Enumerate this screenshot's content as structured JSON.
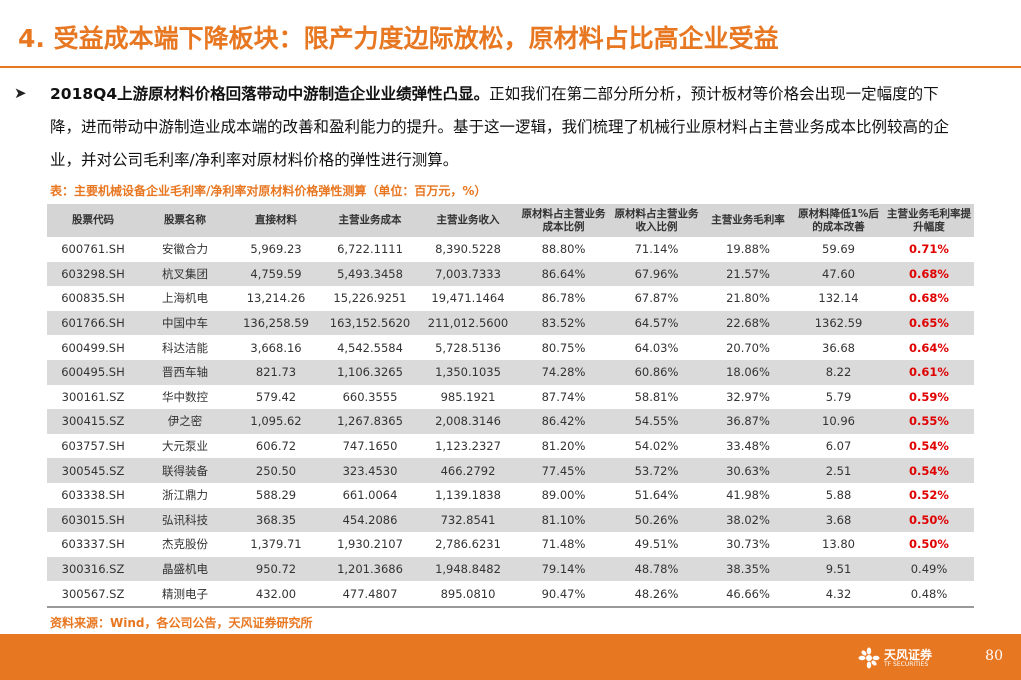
{
  "header": {
    "title": "4. 受益成本端下降板块：限产力度边际放松，原材料占比高企业受益"
  },
  "body": {
    "bullet_icon": "arrow-bullet-icon",
    "bold_text": "2018Q4上游原材料价格回落带动中游制造企业业绩弹性凸显。",
    "text": "正如我们在第二部分所分析，预计板材等价格会出现一定幅度的下降，进而带动中游制造业成本端的改善和盈利能力的提升。基于这一逻辑，我们梳理了机械行业原材料占主营业务成本比例较高的企业，并对公司毛利率/净利率对原材料价格的弹性进行测算。"
  },
  "table": {
    "caption": "表：主要机械设备企业毛利率/净利率对原材料价格弹性测算（单位：百万元，%）",
    "headers": [
      "股票代码",
      "股票名称",
      "直接材料",
      "主营业务成本",
      "主营业务收入",
      "原材料占主营业务成本比例",
      "原材料占主营业务收入比例",
      "主营业务毛利率",
      "原材料降低1%后的成本改善",
      "主营业务毛利率提升幅度"
    ],
    "rows": [
      [
        "600761.SH",
        "安徽合力",
        "5,969.23",
        "6,722.1111",
        "8,390.5228",
        "88.80%",
        "71.14%",
        "19.88%",
        "59.69",
        "0.71%"
      ],
      [
        "603298.SH",
        "杭叉集团",
        "4,759.59",
        "5,493.3458",
        "7,003.7333",
        "86.64%",
        "67.96%",
        "21.57%",
        "47.60",
        "0.68%"
      ],
      [
        "600835.SH",
        "上海机电",
        "13,214.26",
        "15,226.9251",
        "19,471.1464",
        "86.78%",
        "67.87%",
        "21.80%",
        "132.14",
        "0.68%"
      ],
      [
        "601766.SH",
        "中国中车",
        "136,258.59",
        "163,152.5620",
        "211,012.5600",
        "83.52%",
        "64.57%",
        "22.68%",
        "1362.59",
        "0.65%"
      ],
      [
        "600499.SH",
        "科达洁能",
        "3,668.16",
        "4,542.5584",
        "5,728.5136",
        "80.75%",
        "64.03%",
        "20.70%",
        "36.68",
        "0.64%"
      ],
      [
        "600495.SH",
        "晋西车轴",
        "821.73",
        "1,106.3265",
        "1,350.1035",
        "74.28%",
        "60.86%",
        "18.06%",
        "8.22",
        "0.61%"
      ],
      [
        "300161.SZ",
        "华中数控",
        "579.42",
        "660.3555",
        "985.1921",
        "87.74%",
        "58.81%",
        "32.97%",
        "5.79",
        "0.59%"
      ],
      [
        "300415.SZ",
        "伊之密",
        "1,095.62",
        "1,267.8365",
        "2,008.3146",
        "86.42%",
        "54.55%",
        "36.87%",
        "10.96",
        "0.55%"
      ],
      [
        "603757.SH",
        "大元泵业",
        "606.72",
        "747.1650",
        "1,123.2327",
        "81.20%",
        "54.02%",
        "33.48%",
        "6.07",
        "0.54%"
      ],
      [
        "300545.SZ",
        "联得装备",
        "250.50",
        "323.4530",
        "466.2792",
        "77.45%",
        "53.72%",
        "30.63%",
        "2.51",
        "0.54%"
      ],
      [
        "603338.SH",
        "浙江鼎力",
        "588.29",
        "661.0064",
        "1,139.1838",
        "89.00%",
        "51.64%",
        "41.98%",
        "5.88",
        "0.52%"
      ],
      [
        "603015.SH",
        "弘讯科技",
        "368.35",
        "454.2086",
        "732.8541",
        "81.10%",
        "50.26%",
        "38.02%",
        "3.68",
        "0.50%"
      ],
      [
        "603337.SH",
        "杰克股份",
        "1,379.71",
        "1,930.2107",
        "2,786.6231",
        "71.48%",
        "49.51%",
        "30.73%",
        "13.80",
        "0.50%"
      ],
      [
        "300316.SZ",
        "晶盛机电",
        "950.72",
        "1,201.3686",
        "1,948.8482",
        "79.14%",
        "48.78%",
        "38.35%",
        "9.51",
        "0.49%"
      ],
      [
        "300567.SZ",
        "精测电子",
        "432.00",
        "477.4807",
        "895.0810",
        "90.47%",
        "48.26%",
        "46.66%",
        "4.32",
        "0.48%"
      ]
    ],
    "highlight_color": "#e00000",
    "highlight_rows_count": 13
  },
  "source": "资料来源：Wind，各公司公告，天风证券研究所",
  "footer": {
    "logo_text": "天风证券",
    "logo_sub": "TF SECURITIES",
    "logo_icon": "tf-securities-logo-icon",
    "page_number": "80"
  },
  "colors": {
    "accent": "#e87722",
    "header_bg": "#d5d5d5",
    "stripe_bg": "#dadada"
  }
}
